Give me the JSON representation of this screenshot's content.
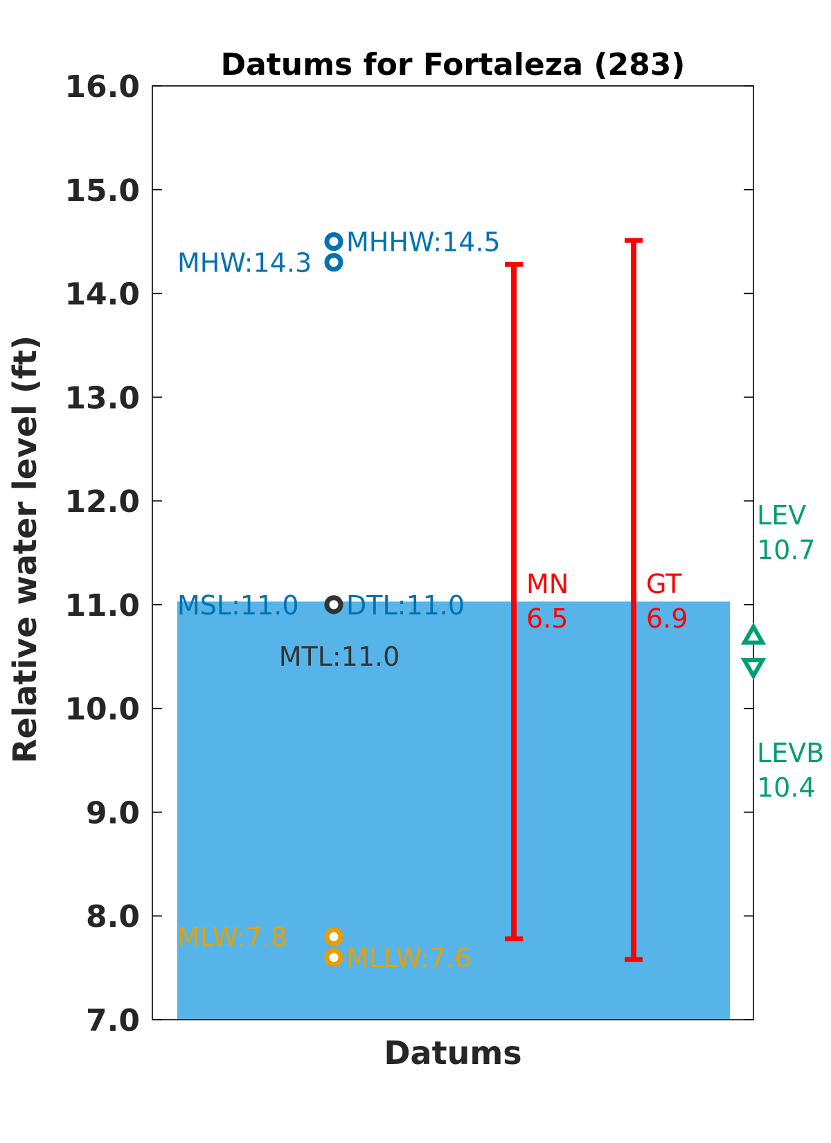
{
  "chart_data": {
    "type": "scatter",
    "title": "Datums for Fortaleza (283)",
    "xlabel": "Datums",
    "ylabel": "Relative water level (ft)",
    "ylim": [
      7.0,
      16.0
    ],
    "yticks": [
      "7.0",
      "8.0",
      "9.0",
      "10.0",
      "11.0",
      "12.0",
      "13.0",
      "14.0",
      "15.0",
      "16.0"
    ],
    "grid": false,
    "legend": "none",
    "fill_region": {
      "from": 7.0,
      "to": 11.03,
      "color": "#56B4E9"
    },
    "datums": [
      {
        "name": "MHHW",
        "value": 14.5,
        "label": "MHHW:14.5",
        "color": "#0072B2",
        "label_side": "right"
      },
      {
        "name": "MHW",
        "value": 14.3,
        "label": "MHW:14.3",
        "color": "#0072B2",
        "label_side": "left"
      },
      {
        "name": "MSL",
        "value": 11.0,
        "label": "MSL:11.0",
        "color": "#0072B2",
        "label_side": "left"
      },
      {
        "name": "DTL",
        "value": 11.0,
        "label": "DTL:11.0",
        "color": "#0072B2",
        "label_side": "right"
      },
      {
        "name": "MTL",
        "value": 11.0,
        "label": "MTL:11.0",
        "color": "#333333",
        "label_side": "below"
      },
      {
        "name": "MLW",
        "value": 7.8,
        "label": "MLW:7.8",
        "color": "#E69F00",
        "label_side": "left"
      },
      {
        "name": "MLLW",
        "value": 7.6,
        "label": "MLLW:7.6",
        "color": "#E69F00",
        "label_side": "right"
      }
    ],
    "ranges": [
      {
        "name": "MN",
        "from": 7.78,
        "to": 14.28,
        "label": "MN",
        "value_label": "6.5",
        "color": "#FF0000"
      },
      {
        "name": "GT",
        "from": 7.58,
        "to": 14.51,
        "label": "GT",
        "value_label": "6.9",
        "color": "#FF0000"
      }
    ],
    "extremes": [
      {
        "name": "LEV",
        "value": 10.7,
        "label": "LEV",
        "value_label": "10.7",
        "marker": "triangle-up",
        "color": "#009E73"
      },
      {
        "name": "LEVB",
        "value": 10.4,
        "label": "LEVB",
        "value_label": "10.4",
        "marker": "triangle-down",
        "color": "#009E73"
      }
    ]
  }
}
